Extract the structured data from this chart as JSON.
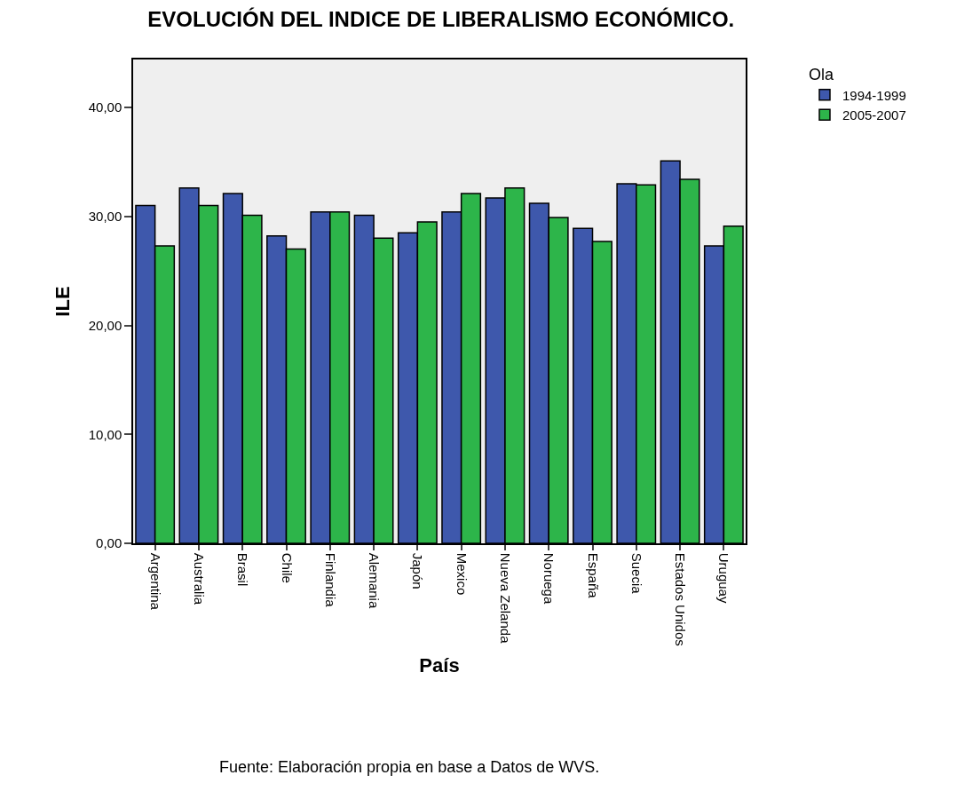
{
  "chart_data": {
    "type": "bar",
    "title": "EVOLUCIÓN DEL INDICE DE LIBERALISMO ECONÓMICO.",
    "xlabel": "País",
    "ylabel": "ILE",
    "legend_title": "Ola",
    "categories": [
      "Argentina",
      "Australia",
      "Brasil",
      "Chile",
      "Finlandia",
      "Alemania",
      "Japón",
      "Mexico",
      "Nueva Zelanda",
      "Noruega",
      "España",
      "Suecia",
      "Estados Unidos",
      "Uruguay"
    ],
    "series": [
      {
        "name": "1994-1999",
        "color": "#3e58ac",
        "values": [
          31.0,
          32.6,
          32.1,
          28.2,
          30.4,
          30.1,
          28.5,
          30.4,
          31.7,
          31.2,
          28.9,
          33.0,
          35.1,
          27.3
        ]
      },
      {
        "name": "2005-2007",
        "color": "#2db54a",
        "values": [
          27.3,
          31.0,
          30.1,
          27.0,
          30.4,
          28.0,
          29.5,
          32.1,
          32.6,
          29.9,
          27.7,
          32.9,
          33.4,
          29.1
        ]
      }
    ],
    "ylim": [
      0,
      44.4
    ],
    "yticks": [
      {
        "value": 0,
        "label": "0,00"
      },
      {
        "value": 10,
        "label": "10,00"
      },
      {
        "value": 20,
        "label": "20,00"
      },
      {
        "value": 30,
        "label": "30,00"
      },
      {
        "value": 40,
        "label": "40,00"
      }
    ],
    "grid": false,
    "legend": "top right",
    "annotations": [
      "Fuente: Elaboración propia en base a Datos de WVS."
    ]
  }
}
